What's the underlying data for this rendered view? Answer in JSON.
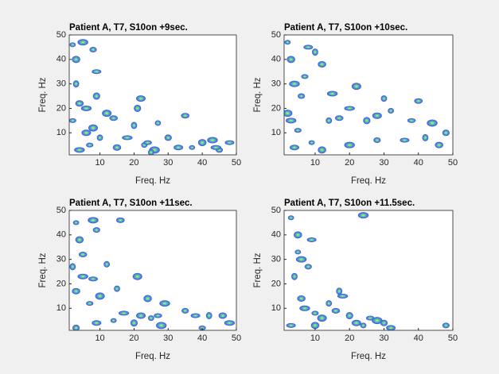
{
  "chart_data": [
    {
      "type": "contour",
      "title": "Patient A, T7, S10on +9sec.",
      "xlabel": "Freq. Hz",
      "ylabel": "Freq. Hz",
      "xlim": [
        1,
        50
      ],
      "ylim": [
        1,
        50
      ],
      "xticks": [
        10,
        20,
        30,
        40,
        50
      ],
      "yticks": [
        10,
        20,
        30,
        40,
        50
      ],
      "color": "#4a5ad8",
      "x": [
        2,
        3,
        5,
        8,
        9,
        3,
        4,
        6,
        2,
        8,
        10,
        14,
        18,
        21,
        22,
        23,
        24,
        26,
        30,
        33,
        37,
        40,
        43,
        45,
        48,
        20,
        15,
        4,
        7,
        12,
        25,
        35,
        44,
        9,
        6,
        27
      ],
      "y": [
        46,
        40,
        47,
        44,
        35,
        30,
        22,
        20,
        15,
        12,
        8,
        16,
        8,
        20,
        24,
        5,
        6,
        3,
        8,
        4,
        4,
        6,
        7,
        3,
        6,
        13,
        4,
        3,
        5,
        18,
        2,
        17,
        4,
        25,
        10,
        14
      ]
    },
    {
      "type": "contour",
      "title": "Patient A, T7, S10on +10sec.",
      "xlabel": "Freq. Hz",
      "ylabel": "Freq. Hz",
      "xlim": [
        1,
        50
      ],
      "ylim": [
        1,
        50
      ],
      "xticks": [
        10,
        20,
        30,
        40,
        50
      ],
      "yticks": [
        10,
        20,
        30,
        40,
        50
      ],
      "color": "#4a5ad8",
      "x": [
        2,
        3,
        4,
        6,
        8,
        10,
        12,
        3,
        5,
        2,
        14,
        17,
        20,
        25,
        28,
        32,
        38,
        44,
        48,
        4,
        9,
        12,
        20,
        28,
        36,
        42,
        46,
        15,
        7,
        22,
        30,
        40
      ],
      "y": [
        47,
        40,
        30,
        25,
        45,
        43,
        38,
        15,
        11,
        18,
        15,
        16,
        20,
        15,
        17,
        19,
        15,
        14,
        10,
        4,
        6,
        3,
        5,
        7,
        7,
        8,
        5,
        26,
        33,
        29,
        24,
        23
      ]
    },
    {
      "type": "contour",
      "title": "Patient A, T7, S10on +11sec.",
      "xlabel": "Freq. Hz",
      "ylabel": "Freq. Hz",
      "xlim": [
        1,
        50
      ],
      "ylim": [
        1,
        50
      ],
      "xticks": [
        10,
        20,
        30,
        40,
        50
      ],
      "yticks": [
        10,
        20,
        30,
        40,
        50
      ],
      "color": "#4a5ad8",
      "x": [
        3,
        4,
        8,
        9,
        8,
        2,
        3,
        5,
        7,
        10,
        15,
        16,
        17,
        20,
        22,
        25,
        27,
        28,
        3,
        9,
        14,
        24,
        29,
        35,
        38,
        42,
        46,
        48,
        40,
        21,
        12,
        5
      ],
      "y": [
        45,
        38,
        46,
        42,
        22,
        27,
        17,
        23,
        12,
        15,
        18,
        46,
        8,
        4,
        7,
        6,
        7,
        3,
        2,
        4,
        5,
        14,
        12,
        9,
        7,
        7,
        7,
        4,
        2,
        23,
        28,
        32
      ]
    },
    {
      "type": "contour",
      "title": "Patient A, T7, S10on +11.5sec.",
      "xlabel": "Freq. Hz",
      "ylabel": "Freq. Hz",
      "xlim": [
        1,
        50
      ],
      "ylim": [
        1,
        50
      ],
      "xticks": [
        10,
        20,
        30,
        40,
        50
      ],
      "yticks": [
        10,
        20,
        30,
        40,
        50
      ],
      "color": "#4a5ad8",
      "x": [
        3,
        5,
        6,
        8,
        9,
        4,
        6,
        7,
        10,
        12,
        14,
        16,
        18,
        20,
        22,
        24,
        26,
        28,
        30,
        32,
        5,
        10,
        24,
        48,
        3,
        17
      ],
      "y": [
        47,
        40,
        30,
        27,
        38,
        23,
        14,
        10,
        8,
        6,
        12,
        9,
        15,
        7,
        4,
        3,
        6,
        5,
        4,
        2,
        33,
        3,
        48,
        3,
        3,
        17
      ]
    }
  ]
}
